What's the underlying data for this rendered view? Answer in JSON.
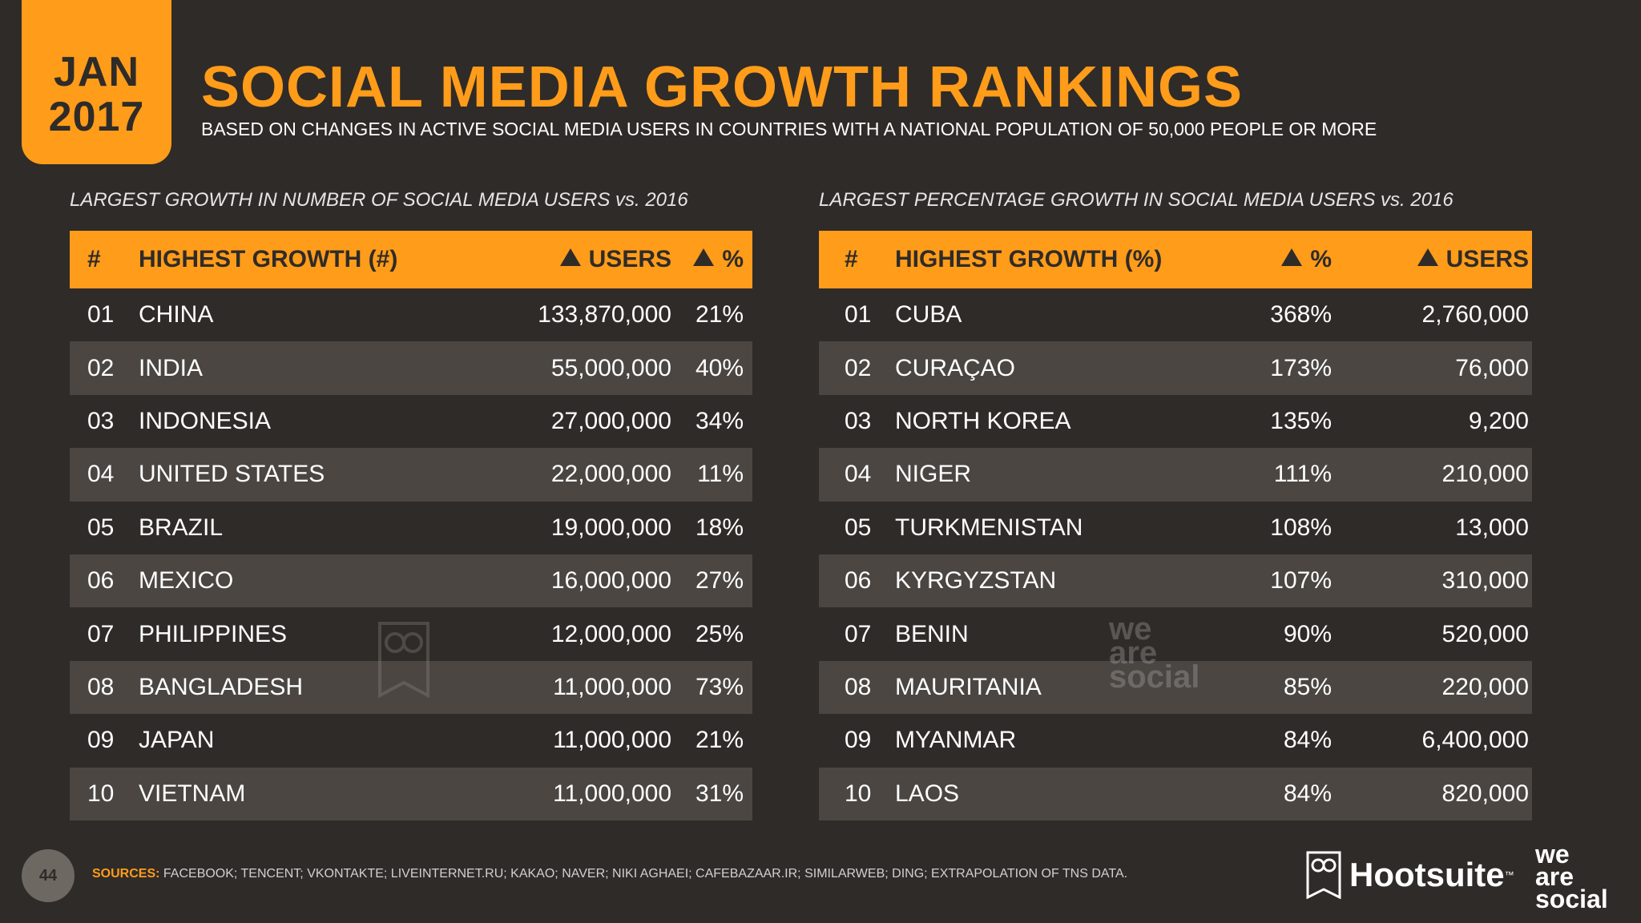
{
  "badge": {
    "month": "JAN",
    "year": "2017"
  },
  "title": "SOCIAL MEDIA GROWTH RANKINGS",
  "subtitle": "BASED ON CHANGES IN ACTIVE SOCIAL MEDIA USERS IN COUNTRIES WITH A NATIONAL POPULATION OF 50,000 PEOPLE OR MORE",
  "left_table": {
    "caption": "LARGEST GROWTH IN NUMBER OF SOCIAL MEDIA USERS vs. 2016",
    "headers": {
      "num": "#",
      "name": "HIGHEST GROWTH (#)",
      "users": "USERS",
      "pct": "%"
    },
    "rows": [
      {
        "num": "01",
        "name": "CHINA",
        "users": "133,870,000",
        "pct": "21%"
      },
      {
        "num": "02",
        "name": "INDIA",
        "users": "55,000,000",
        "pct": "40%"
      },
      {
        "num": "03",
        "name": "INDONESIA",
        "users": "27,000,000",
        "pct": "34%"
      },
      {
        "num": "04",
        "name": "UNITED STATES",
        "users": "22,000,000",
        "pct": "11%"
      },
      {
        "num": "05",
        "name": "BRAZIL",
        "users": "19,000,000",
        "pct": "18%"
      },
      {
        "num": "06",
        "name": "MEXICO",
        "users": "16,000,000",
        "pct": "27%"
      },
      {
        "num": "07",
        "name": "PHILIPPINES",
        "users": "12,000,000",
        "pct": "25%"
      },
      {
        "num": "08",
        "name": "BANGLADESH",
        "users": "11,000,000",
        "pct": "73%"
      },
      {
        "num": "09",
        "name": "JAPAN",
        "users": "11,000,000",
        "pct": "21%"
      },
      {
        "num": "10",
        "name": "VIETNAM",
        "users": "11,000,000",
        "pct": "31%"
      }
    ]
  },
  "right_table": {
    "caption": "LARGEST PERCENTAGE GROWTH IN SOCIAL MEDIA USERS vs. 2016",
    "headers": {
      "num": "#",
      "name": "HIGHEST GROWTH (%)",
      "pct": "%",
      "users": "USERS"
    },
    "rows": [
      {
        "num": "01",
        "name": "CUBA",
        "pct": "368%",
        "users": "2,760,000"
      },
      {
        "num": "02",
        "name": "CURAÇAO",
        "pct": "173%",
        "users": "76,000"
      },
      {
        "num": "03",
        "name": "NORTH KOREA",
        "pct": "135%",
        "users": "9,200"
      },
      {
        "num": "04",
        "name": "NIGER",
        "pct": "111%",
        "users": "210,000"
      },
      {
        "num": "05",
        "name": "TURKMENISTAN",
        "pct": "108%",
        "users": "13,000"
      },
      {
        "num": "06",
        "name": "KYRGYZSTAN",
        "pct": "107%",
        "users": "310,000"
      },
      {
        "num": "07",
        "name": "BENIN",
        "pct": "90%",
        "users": "520,000"
      },
      {
        "num": "08",
        "name": "MAURITANIA",
        "pct": "85%",
        "users": "220,000"
      },
      {
        "num": "09",
        "name": "MYANMAR",
        "pct": "84%",
        "users": "6,400,000"
      },
      {
        "num": "10",
        "name": "LAOS",
        "pct": "84%",
        "users": "820,000"
      }
    ]
  },
  "watermark": {
    "was": [
      "we",
      "are",
      "social"
    ]
  },
  "footer": {
    "page_number": "44",
    "sources_label": "SOURCES:",
    "sources_text": " FACEBOOK; TENCENT; VKONTAKTE; LIVEINTERNET.RU; KAKAO; NAVER; NIKI AGHAEI; CAFEBAZAAR.IR; SIMILARWEB; DING; EXTRAPOLATION OF TNS DATA.",
    "brand1": "Hootsuite",
    "brand1_tm": "™",
    "brand2": [
      "we",
      "are",
      "social"
    ]
  },
  "colors": {
    "accent": "#ff9c1a",
    "background": "#2f2b28",
    "row_alt": "#4b4642"
  },
  "icons": [
    "triangle-up-icon",
    "owl-icon"
  ]
}
